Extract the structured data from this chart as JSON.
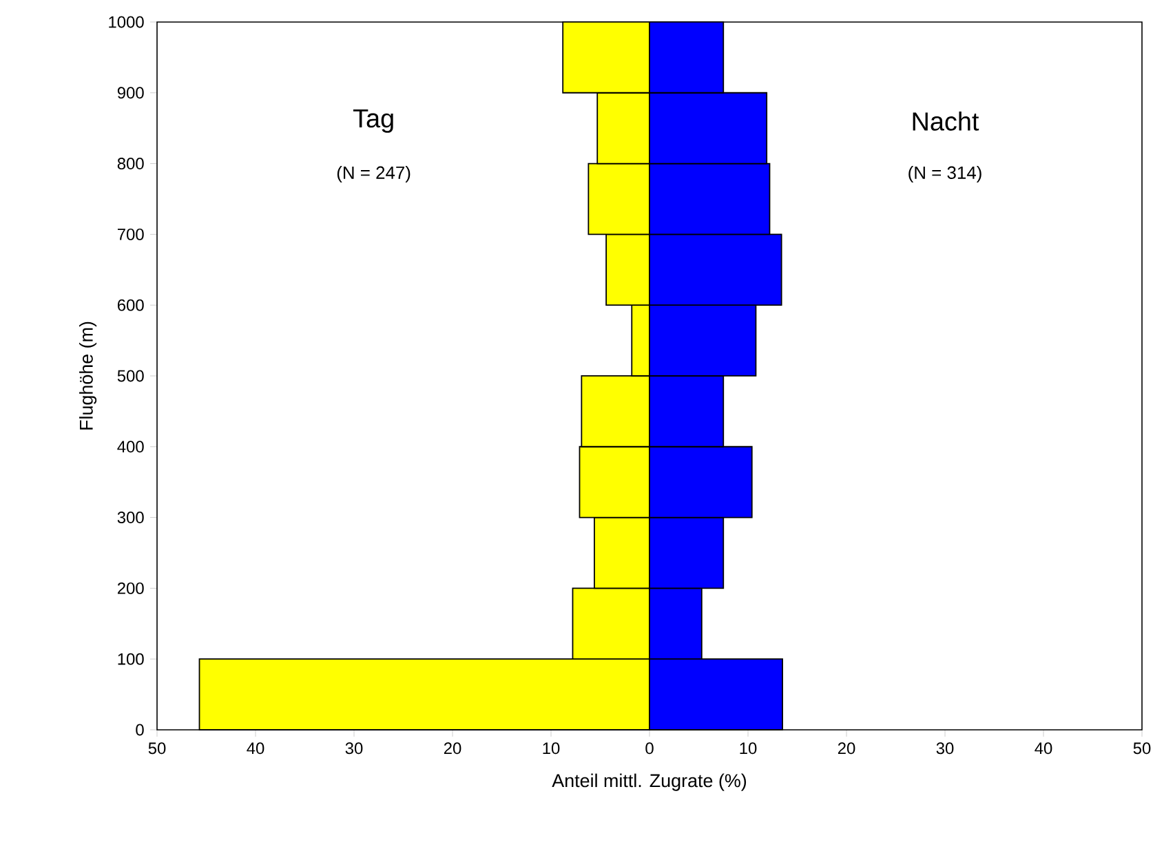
{
  "chart_data": {
    "type": "bar",
    "orientation": "horizontal",
    "xlabel": "Anteil mittl. Zugrate (%)",
    "ylabel": "Flughöhe (m)",
    "x": [
      50,
      150,
      250,
      350,
      450,
      550,
      650,
      750,
      850,
      950
    ],
    "series": [
      {
        "color": "#ffff00",
        "values": [
          -45.7,
          -7.8,
          -5.6,
          -7.1,
          -6.9,
          -1.8,
          -4.4,
          -6.2,
          -5.3,
          -8.8
        ]
      },
      {
        "color": "#0000ff",
        "values": [
          13.5,
          5.3,
          7.5,
          10.4,
          7.5,
          10.8,
          13.4,
          12.2,
          11.9,
          7.5
        ]
      }
    ],
    "stacked": true,
    "annotations": [
      "Tag",
      "(N = 247)",
      "Nacht",
      "(N = 314)"
    ],
    "xlim": [
      -50,
      50
    ],
    "xticks": [
      {
        "value": -50,
        "label": "50"
      },
      {
        "value": -40,
        "label": "40"
      },
      {
        "value": -30,
        "label": "30"
      },
      {
        "value": -20,
        "label": "20"
      },
      {
        "value": -10,
        "label": "10"
      },
      0,
      10,
      20,
      30,
      40,
      50
    ],
    "ylim": [
      0,
      1000
    ],
    "yticks": [
      0,
      100,
      200,
      300,
      400,
      500,
      600,
      700,
      800,
      900,
      1000
    ],
    "grid": false
  }
}
